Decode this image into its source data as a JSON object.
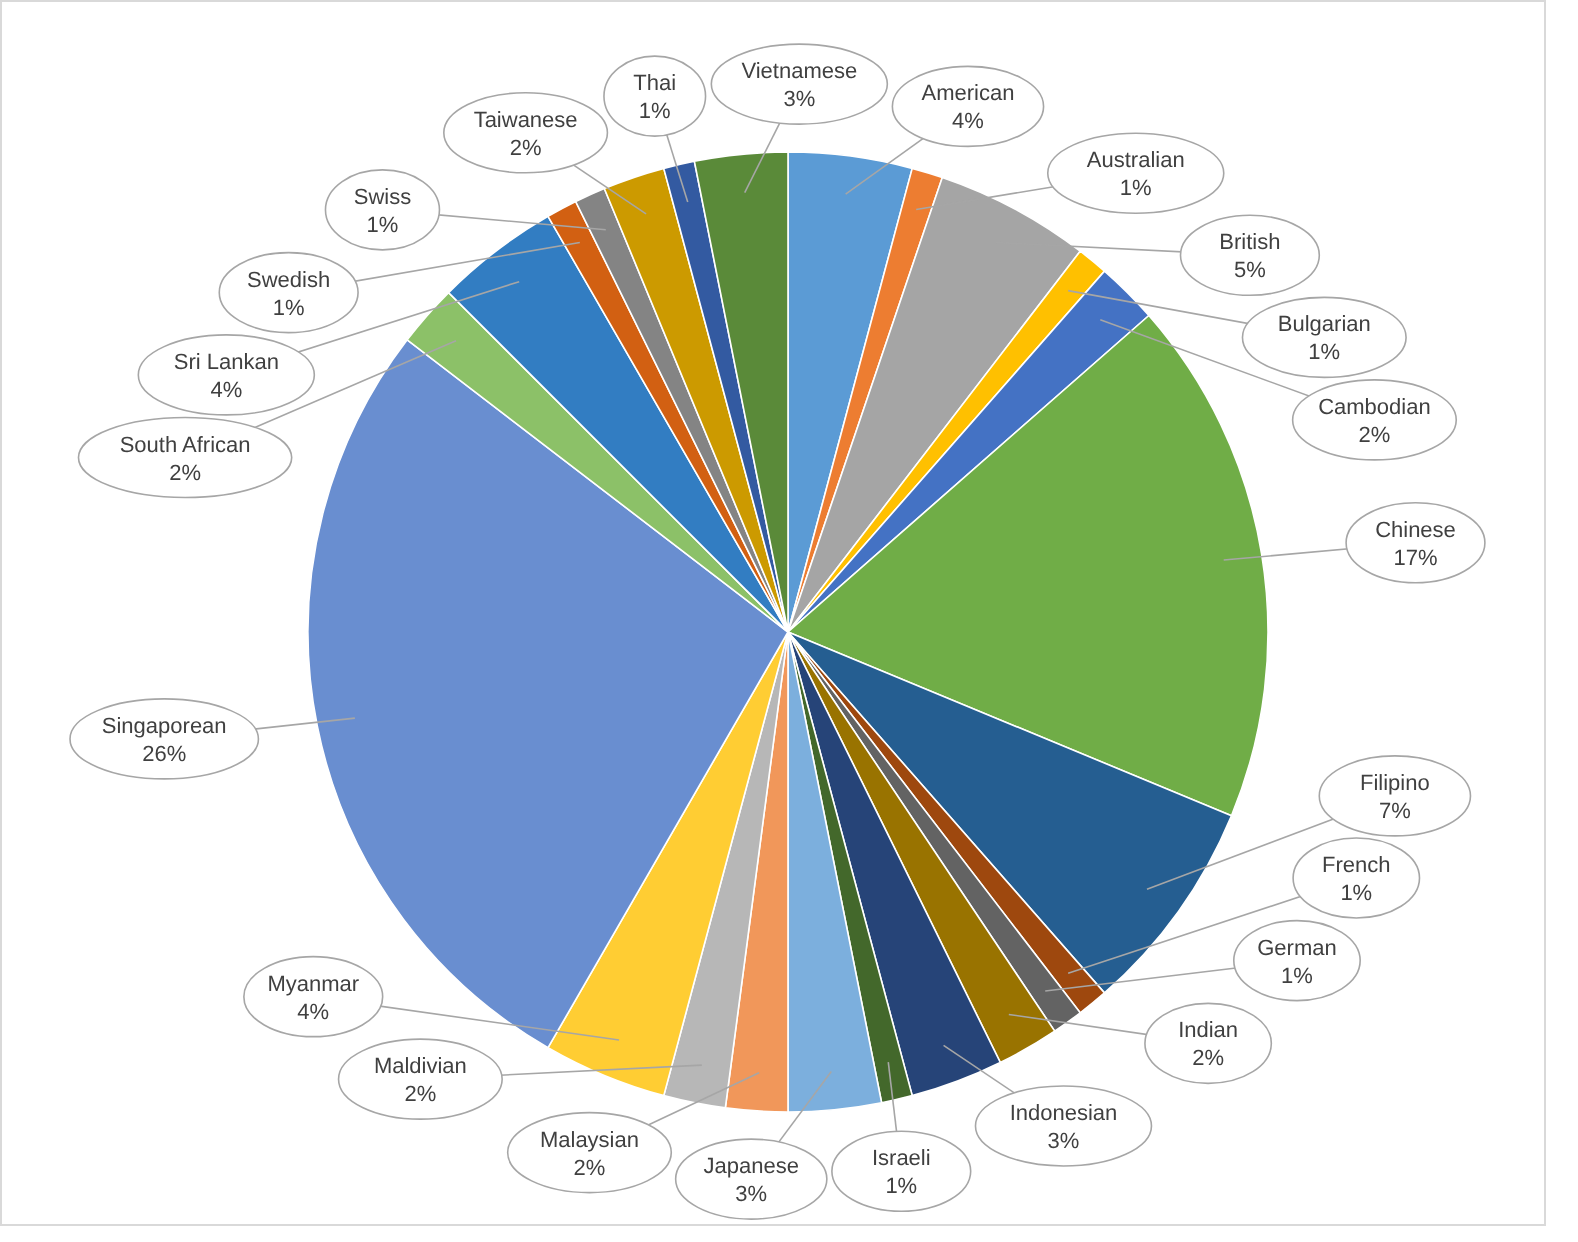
{
  "chart_data": {
    "type": "pie",
    "categories": [
      "American",
      "Australian",
      "British",
      "Bulgarian",
      "Cambodian",
      "Chinese",
      "Filipino",
      "French",
      "German",
      "Indian",
      "Indonesian",
      "Israeli",
      "Japanese",
      "Malaysian",
      "Maldivian",
      "Myanmar",
      "Singaporean",
      "South African",
      "Sri Lankan",
      "Swedish",
      "Swiss",
      "Taiwanese",
      "Thai",
      "Vietnamese"
    ],
    "values": [
      4,
      1,
      5,
      1,
      2,
      17,
      7,
      1,
      1,
      2,
      3,
      1,
      3,
      2,
      2,
      4,
      26,
      2,
      4,
      1,
      1,
      2,
      1,
      3
    ],
    "value_labels": [
      "4%",
      "1%",
      "5%",
      "1%",
      "2%",
      "17%",
      "7%",
      "1%",
      "1%",
      "2%",
      "3%",
      "1%",
      "3%",
      "2%",
      "2%",
      "4%",
      "26%",
      "2%",
      "4%",
      "1%",
      "1%",
      "2%",
      "1%",
      "3%"
    ],
    "colors": [
      "#5b9bd5",
      "#ed7d31",
      "#a5a5a5",
      "#ffc000",
      "#4472c4",
      "#70ad47",
      "#255e91",
      "#9e480e",
      "#636363",
      "#997300",
      "#264478",
      "#43682b",
      "#7cafdd",
      "#f1975a",
      "#b7b7b7",
      "#ffcd33",
      "#698ed0",
      "#8cc168",
      "#327dc2",
      "#d26012",
      "#848484",
      "#cc9a00",
      "#335aa1",
      "#5a8a39"
    ]
  }
}
